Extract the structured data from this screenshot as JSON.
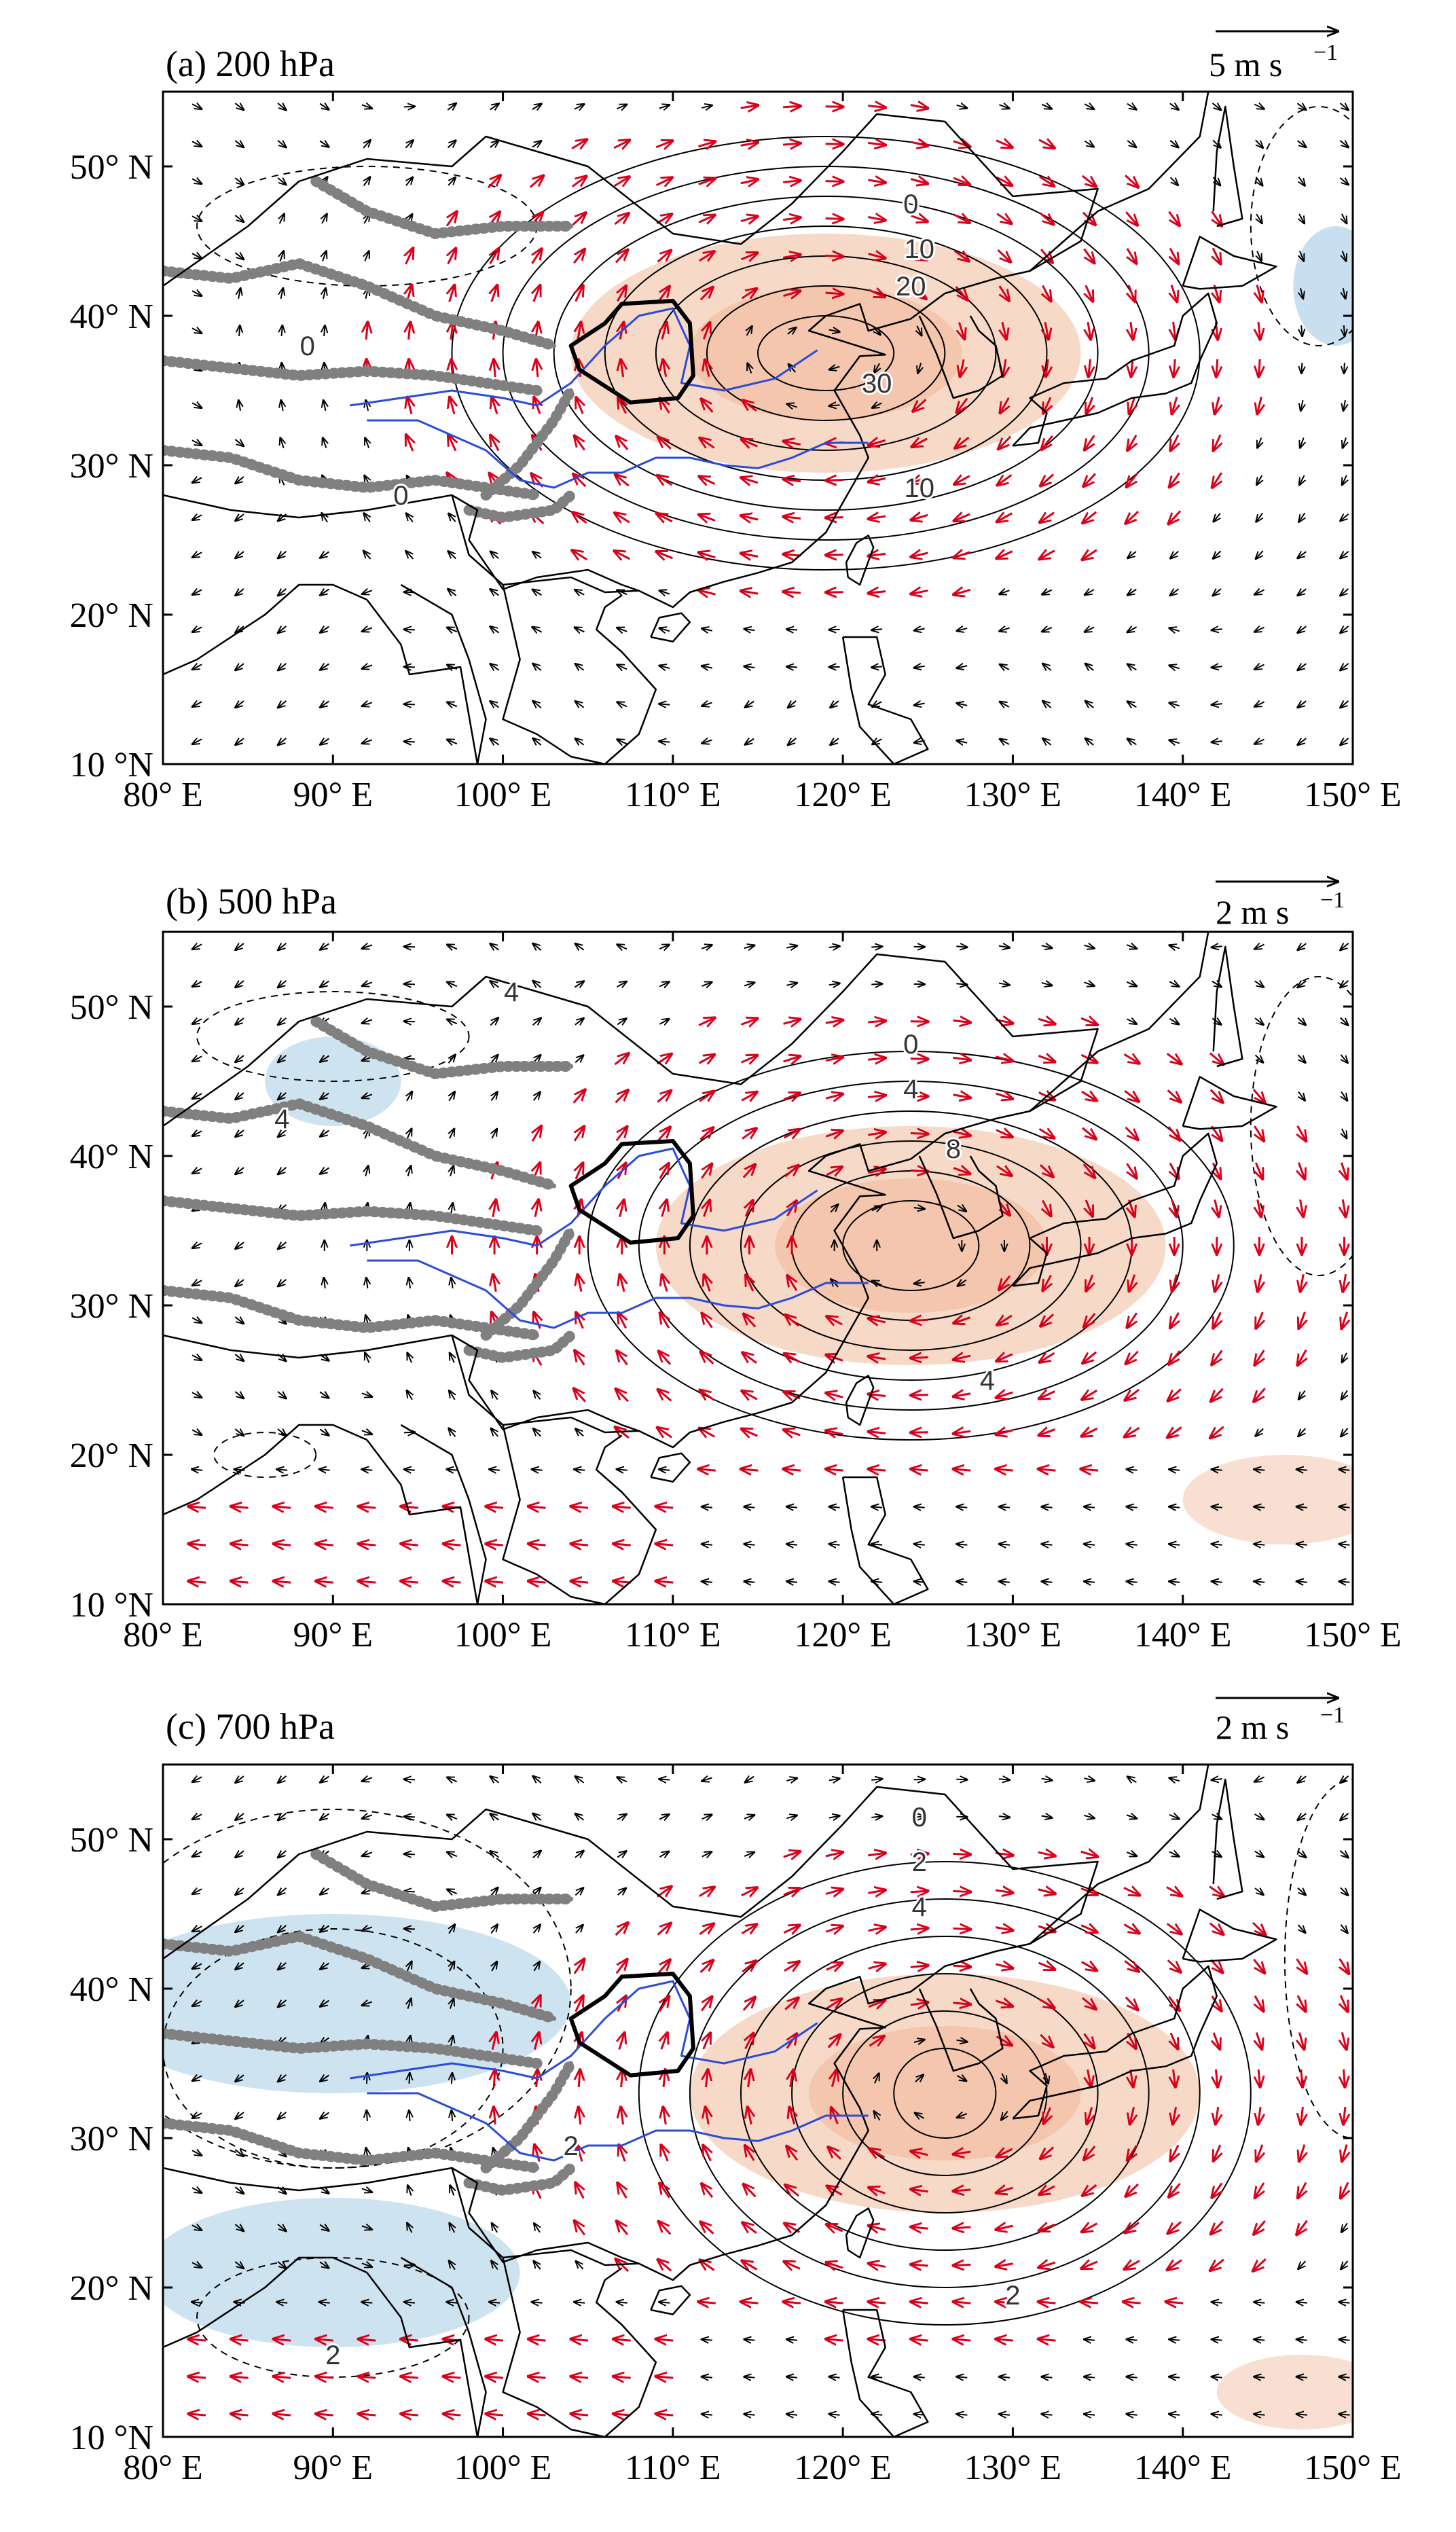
{
  "figure": {
    "panels": [
      {
        "id": "a",
        "title": "(a) 200 hPa",
        "ref_vector_label": "5 m s",
        "ref_vector_unit_exp": "−1",
        "contour_labels": [
          {
            "text": "0",
            "lon": 124.0,
            "lat": 47.5
          },
          {
            "text": "10",
            "lon": 124.5,
            "lat": 44.5
          },
          {
            "text": "20",
            "lon": 124.0,
            "lat": 42.0
          },
          {
            "text": "30",
            "lon": 122.0,
            "lat": 35.5
          },
          {
            "text": "10",
            "lon": 124.5,
            "lat": 28.5
          },
          {
            "text": "0",
            "lon": 88.5,
            "lat": 38.0
          },
          {
            "text": "0",
            "lon": 94.0,
            "lat": 28.0
          }
        ],
        "anomaly_center": {
          "lon": 119.0,
          "lat": 37.5
        },
        "contour_radii_deg": [
          [
            4,
            2.5
          ],
          [
            7,
            4.5
          ],
          [
            10,
            6.5
          ],
          [
            13,
            8.5
          ],
          [
            16,
            10.5
          ],
          [
            19,
            12.5
          ],
          [
            22,
            14.5
          ]
        ]
      },
      {
        "id": "b",
        "title": "(b) 500 hPa",
        "ref_vector_label": "2 m s",
        "ref_vector_unit_exp": "−1",
        "contour_labels": [
          {
            "text": "4",
            "lon": 100.5,
            "lat": 51.0
          },
          {
            "text": "4",
            "lon": 87.0,
            "lat": 42.5
          },
          {
            "text": "0",
            "lon": 124.0,
            "lat": 47.5
          },
          {
            "text": "4",
            "lon": 124.0,
            "lat": 44.5
          },
          {
            "text": "8",
            "lon": 126.5,
            "lat": 40.5
          },
          {
            "text": "4",
            "lon": 128.5,
            "lat": 25.0
          }
        ],
        "anomaly_center": {
          "lon": 124.0,
          "lat": 34.0
        },
        "contour_radii_deg": [
          [
            4,
            3
          ],
          [
            7,
            5
          ],
          [
            10,
            7
          ],
          [
            13,
            9
          ],
          [
            16,
            11
          ],
          [
            19,
            13
          ]
        ]
      },
      {
        "id": "c",
        "title": "(c) 700 hPa",
        "ref_vector_label": "2 m s",
        "ref_vector_unit_exp": "−1",
        "contour_labels": [
          {
            "text": "0",
            "lon": 124.5,
            "lat": 51.5
          },
          {
            "text": "2",
            "lon": 124.5,
            "lat": 48.5
          },
          {
            "text": "4",
            "lon": 124.5,
            "lat": 45.5
          },
          {
            "text": "2",
            "lon": 104.0,
            "lat": 29.5
          },
          {
            "text": "2",
            "lon": 90.0,
            "lat": 15.5
          },
          {
            "text": "2",
            "lon": 130.0,
            "lat": 19.5
          }
        ],
        "anomaly_center": {
          "lon": 126.0,
          "lat": 33.0
        },
        "contour_radii_deg": [
          [
            3,
            3
          ],
          [
            6,
            5.5
          ],
          [
            9,
            8
          ],
          [
            12,
            10.5
          ],
          [
            15,
            13
          ],
          [
            18,
            15.5
          ]
        ]
      }
    ],
    "lon_ticks": [
      "80° E",
      "90° E",
      "100° E",
      "110° E",
      "120° E",
      "130° E",
      "140° E",
      "150° E"
    ],
    "lat_ticks": [
      "10 °N",
      "20° N",
      "30° N",
      "40° N",
      "50° N"
    ],
    "extent": {
      "lon_min": 80,
      "lon_max": 150,
      "lat_min": 10,
      "lat_max": 55
    },
    "colors": {
      "positive_shading": "#f6d2bd",
      "negative_shading": "#b9d7ea",
      "significant_vector": "#d9001b",
      "vector": "#000000",
      "plateau": "#808080",
      "rivers": "#2b4cd8",
      "region_boundary": "#000000"
    }
  }
}
